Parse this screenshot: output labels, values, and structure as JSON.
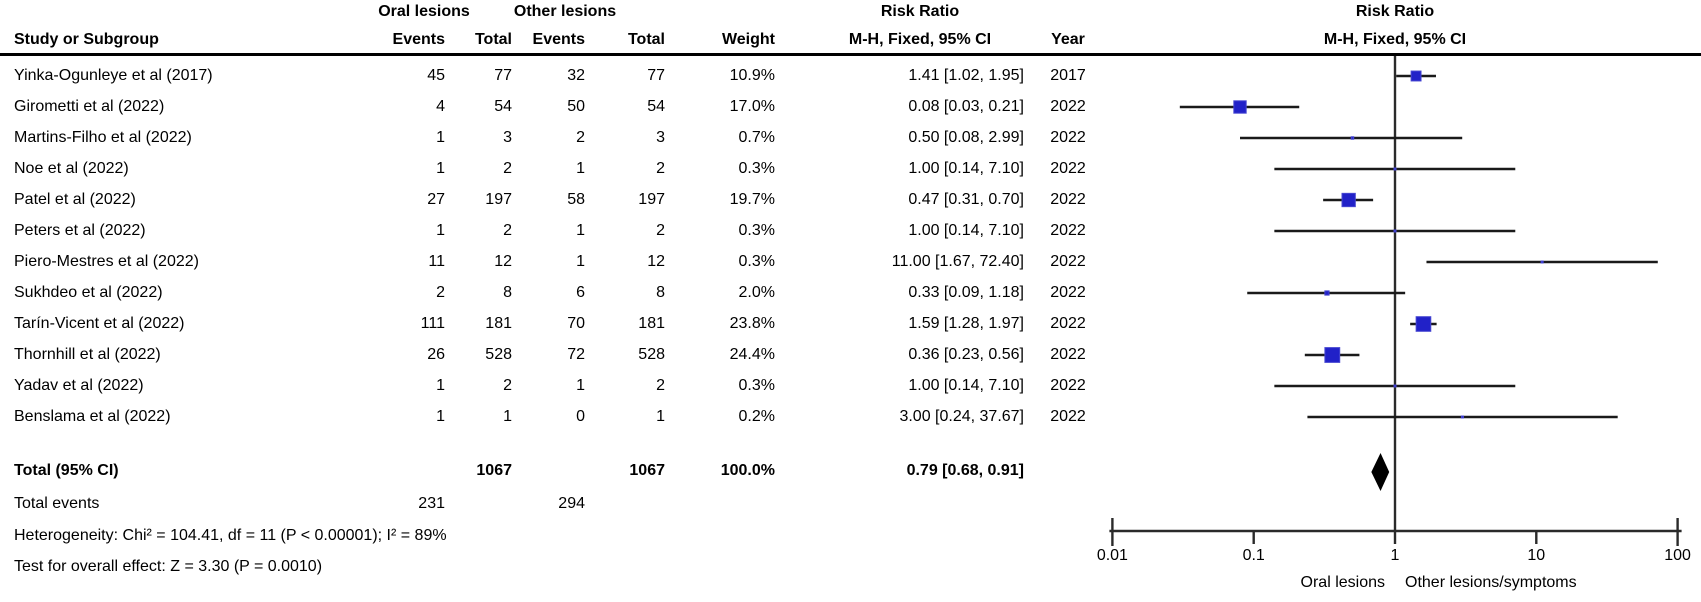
{
  "header": {
    "group1": "Oral lesions",
    "group2": "Other lesions",
    "risk_ratio": "Risk Ratio",
    "study": "Study or Subgroup",
    "events": "Events",
    "total": "Total",
    "weight": "Weight",
    "method_ci": "M-H, Fixed, 95% CI",
    "year": "Year"
  },
  "chart_data": {
    "type": "forest",
    "effect_measure": "Risk Ratio",
    "method": "M-H, Fixed, 95% CI",
    "x_scale": "log",
    "x_ticks": [
      0.01,
      0.1,
      1,
      10,
      100
    ],
    "x_tick_labels": [
      "0.01",
      "0.1",
      "1",
      "10",
      "100"
    ],
    "null_line_value": 1,
    "favors_left": "Oral lesions",
    "favors_right": "Other lesions/symptoms",
    "marker_color": "#2121c8",
    "studies": [
      {
        "name": "Yinka-Ogunleye et al (2017)",
        "events1": 45,
        "total1": 77,
        "events2": 32,
        "total2": 77,
        "weight": 10.9,
        "weight_text": "10.9%",
        "rr": 1.41,
        "ci_low": 1.02,
        "ci_high": 1.95,
        "rr_text": "1.41 [1.02, 1.95]",
        "year": "2017"
      },
      {
        "name": "Girometti et al (2022)",
        "events1": 4,
        "total1": 54,
        "events2": 50,
        "total2": 54,
        "weight": 17.0,
        "weight_text": "17.0%",
        "rr": 0.08,
        "ci_low": 0.03,
        "ci_high": 0.21,
        "rr_text": "0.08 [0.03, 0.21]",
        "year": "2022"
      },
      {
        "name": "Martins-Filho et al (2022)",
        "events1": 1,
        "total1": 3,
        "events2": 2,
        "total2": 3,
        "weight": 0.7,
        "weight_text": "0.7%",
        "rr": 0.5,
        "ci_low": 0.08,
        "ci_high": 2.99,
        "rr_text": "0.50 [0.08, 2.99]",
        "year": "2022"
      },
      {
        "name": "Noe et al (2022)",
        "events1": 1,
        "total1": 2,
        "events2": 1,
        "total2": 2,
        "weight": 0.3,
        "weight_text": "0.3%",
        "rr": 1.0,
        "ci_low": 0.14,
        "ci_high": 7.1,
        "rr_text": "1.00 [0.14, 7.10]",
        "year": "2022"
      },
      {
        "name": "Patel et al (2022)",
        "events1": 27,
        "total1": 197,
        "events2": 58,
        "total2": 197,
        "weight": 19.7,
        "weight_text": "19.7%",
        "rr": 0.47,
        "ci_low": 0.31,
        "ci_high": 0.7,
        "rr_text": "0.47 [0.31, 0.70]",
        "year": "2022"
      },
      {
        "name": "Peters et al (2022)",
        "events1": 1,
        "total1": 2,
        "events2": 1,
        "total2": 2,
        "weight": 0.3,
        "weight_text": "0.3%",
        "rr": 1.0,
        "ci_low": 0.14,
        "ci_high": 7.1,
        "rr_text": "1.00 [0.14, 7.10]",
        "year": "2022"
      },
      {
        "name": "Piero-Mestres et al (2022)",
        "events1": 11,
        "total1": 12,
        "events2": 1,
        "total2": 12,
        "weight": 0.3,
        "weight_text": "0.3%",
        "rr": 11.0,
        "ci_low": 1.67,
        "ci_high": 72.4,
        "rr_text": "11.00 [1.67, 72.40]",
        "year": "2022"
      },
      {
        "name": "Sukhdeo et al (2022)",
        "events1": 2,
        "total1": 8,
        "events2": 6,
        "total2": 8,
        "weight": 2.0,
        "weight_text": "2.0%",
        "rr": 0.33,
        "ci_low": 0.09,
        "ci_high": 1.18,
        "rr_text": "0.33 [0.09, 1.18]",
        "year": "2022"
      },
      {
        "name": "Tarín-Vicent et al (2022)",
        "events1": 111,
        "total1": 181,
        "events2": 70,
        "total2": 181,
        "weight": 23.8,
        "weight_text": "23.8%",
        "rr": 1.59,
        "ci_low": 1.28,
        "ci_high": 1.97,
        "rr_text": "1.59 [1.28, 1.97]",
        "year": "2022"
      },
      {
        "name": "Thornhill et al (2022)",
        "events1": 26,
        "total1": 528,
        "events2": 72,
        "total2": 528,
        "weight": 24.4,
        "weight_text": "24.4%",
        "rr": 0.36,
        "ci_low": 0.23,
        "ci_high": 0.56,
        "rr_text": "0.36 [0.23, 0.56]",
        "year": "2022"
      },
      {
        "name": "Yadav et al (2022)",
        "events1": 1,
        "total1": 2,
        "events2": 1,
        "total2": 2,
        "weight": 0.3,
        "weight_text": "0.3%",
        "rr": 1.0,
        "ci_low": 0.14,
        "ci_high": 7.1,
        "rr_text": "1.00 [0.14, 7.10]",
        "year": "2022"
      },
      {
        "name": "Benslama et al (2022)",
        "events1": 1,
        "total1": 1,
        "events2": 0,
        "total2": 1,
        "weight": 0.2,
        "weight_text": "0.2%",
        "rr": 3.0,
        "ci_low": 0.24,
        "ci_high": 37.67,
        "rr_text": "3.00 [0.24, 37.67]",
        "year": "2022"
      }
    ],
    "overall": {
      "label": "Total (95% CI)",
      "total1": 1067,
      "total2": 1067,
      "weight_text": "100.0%",
      "rr": 0.79,
      "ci_low": 0.68,
      "ci_high": 0.91,
      "rr_text": "0.79 [0.68, 0.91]"
    },
    "total_events": {
      "label": "Total events",
      "events1": 231,
      "events2": 294
    },
    "footnotes": {
      "heterogeneity": "Heterogeneity: Chi² = 104.41, df = 11 (P < 0.00001); I² = 89%",
      "overall_effect": "Test for overall effect: Z = 3.30 (P = 0.0010)"
    }
  }
}
